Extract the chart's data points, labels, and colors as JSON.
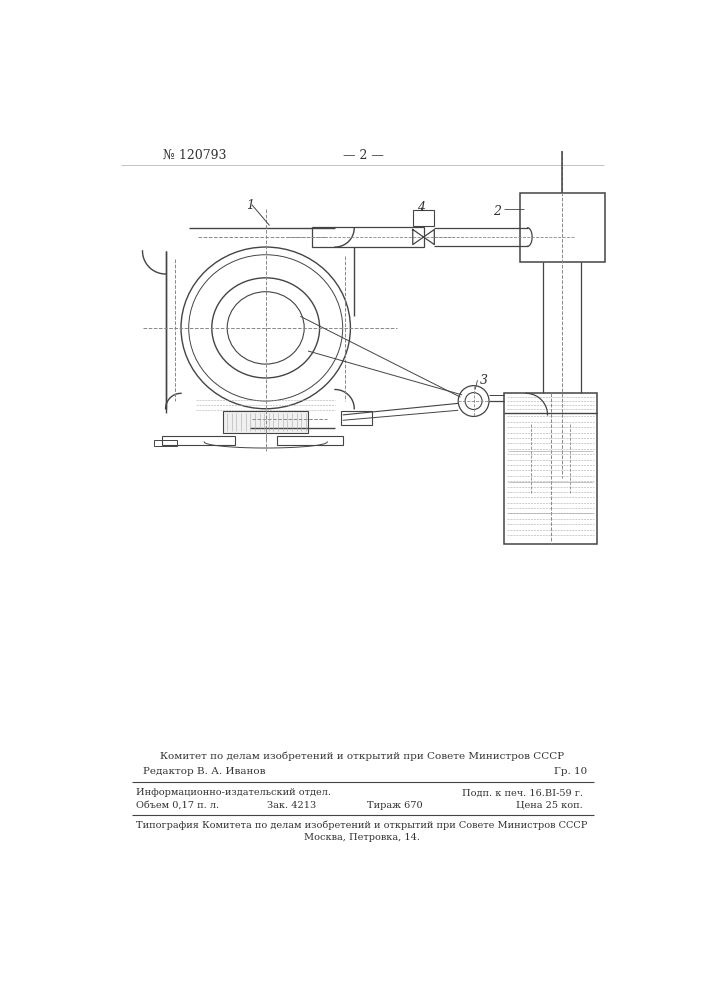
{
  "background_color": "#ffffff",
  "line_color": "#444444",
  "text_color": "#333333",
  "patent_number": "№ 120793",
  "page_number": "— 2 —",
  "label1": "1",
  "label2": "2",
  "label3": "3",
  "label4": "4",
  "footer_line1": "Комитет по делам изобретений и открытий при Совете Министров СССР",
  "footer_line2": "Редактор В. А. Иванов",
  "footer_line2b": "Гр. 10",
  "footer_line3a": "Информационно-издательский отдел.",
  "footer_line3b": "Подп. к печ. 16.ВI-59 г.",
  "footer_line4a": "Объем 0,17 п. л.",
  "footer_line4b": "Зак. 4213",
  "footer_line4c": "Тираж 670",
  "footer_line4d": "Цена 25 коп.",
  "footer_line5": "Типография Комитета по делам изобретений и открытий при Совете Министров СССР",
  "footer_line6": "Москва, Петровка, 14."
}
